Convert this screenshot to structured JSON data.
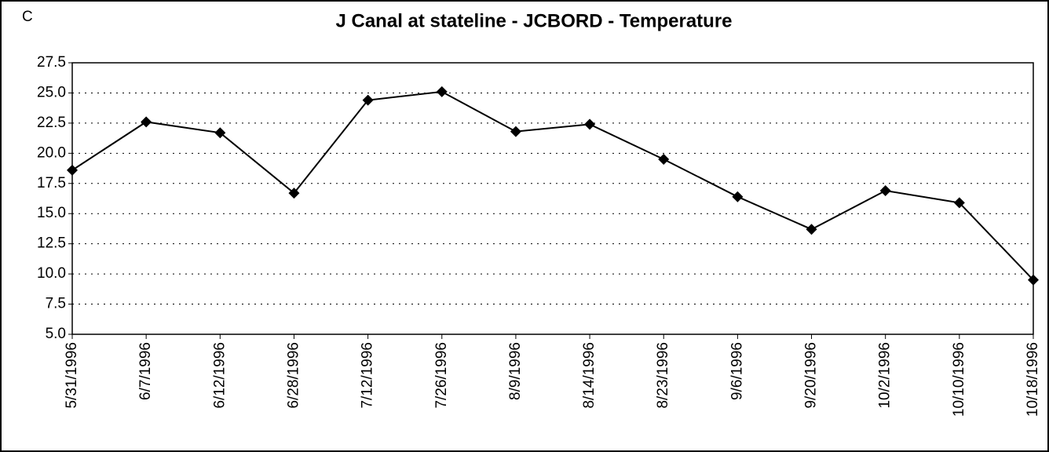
{
  "chart_data": {
    "type": "line",
    "title": "J Canal at stateline - JCBORD - Temperature",
    "ylabel": "C",
    "categories": [
      "5/31/1996",
      "6/7/1996",
      "6/12/1996",
      "6/28/1996",
      "7/12/1996",
      "7/26/1996",
      "8/9/1996",
      "8/14/1996",
      "8/23/1996",
      "9/6/1996",
      "9/20/1996",
      "10/2/1996",
      "10/10/1996",
      "10/18/1996"
    ],
    "series": [
      {
        "name": "Temperature",
        "color": "#000000",
        "values": [
          18.6,
          22.6,
          21.7,
          16.7,
          24.4,
          25.1,
          21.8,
          22.4,
          19.5,
          16.4,
          13.7,
          16.9,
          15.9,
          9.5
        ]
      }
    ],
    "ylim": [
      5,
      27.5
    ],
    "yticks": [
      {
        "value": 5,
        "label": "5.0"
      },
      7.5,
      {
        "value": 10,
        "label": "10.0"
      },
      12.5,
      {
        "value": 15,
        "label": "15.0"
      },
      17.5,
      {
        "value": 20,
        "label": "20.0"
      },
      22.5,
      {
        "value": 25,
        "label": "25.0"
      },
      27.5
    ],
    "grid": true
  }
}
